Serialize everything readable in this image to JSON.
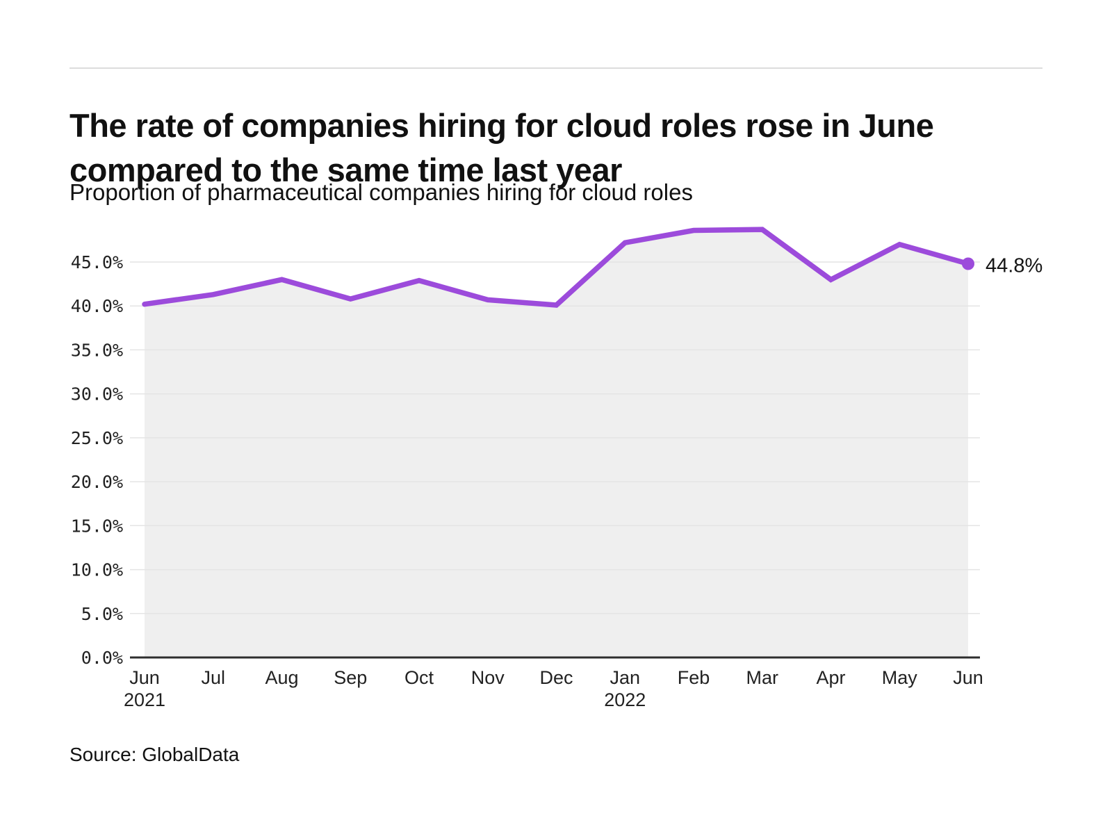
{
  "header": {
    "title_lines": [
      "The rate of companies hiring for cloud roles rose in June",
      "compared to the same time last year"
    ]
  },
  "chart_data": {
    "type": "line",
    "title": "The rate of companies hiring for cloud roles rose in June compared to the same time last year",
    "subtitle": "Proportion of pharmaceutical companies hiring for cloud roles",
    "source": "Source: GlobalData",
    "categories": [
      "Jun",
      "Jul",
      "Aug",
      "Sep",
      "Oct",
      "Nov",
      "Dec",
      "Jan",
      "Feb",
      "Mar",
      "Apr",
      "May",
      "Jun"
    ],
    "category_sublabels": {
      "0": "2021",
      "7": "2022"
    },
    "values": [
      40.2,
      41.3,
      43.0,
      40.8,
      42.9,
      40.7,
      40.1,
      47.2,
      48.6,
      48.7,
      43.0,
      47.0,
      44.8
    ],
    "unit": "%",
    "ylim": [
      0,
      45
    ],
    "grid": true,
    "legend": "none",
    "area_fill": true,
    "end_label": "44.8%",
    "y_ticks": [
      {
        "value": 45,
        "label": "45.0%"
      },
      {
        "value": 40,
        "label": "40.0%"
      },
      {
        "value": 35,
        "label": "35.0%"
      },
      {
        "value": 30,
        "label": "30.0%"
      },
      {
        "value": 25,
        "label": "25.0%"
      },
      {
        "value": 20,
        "label": "20.0%"
      },
      {
        "value": 15,
        "label": "15.0%"
      },
      {
        "value": 10,
        "label": "10.0%"
      },
      {
        "value": 5,
        "label": "5.0%"
      },
      {
        "value": 0,
        "label": "0.0%"
      }
    ],
    "colors": {
      "line": "#9c4bdb",
      "area": "#efefef",
      "grid": "#e4e4e4",
      "axis": "#2e2e2e",
      "text": "#222222",
      "title_text": "#111111",
      "background": "#ffffff",
      "rule": "#dcdcdc"
    }
  }
}
